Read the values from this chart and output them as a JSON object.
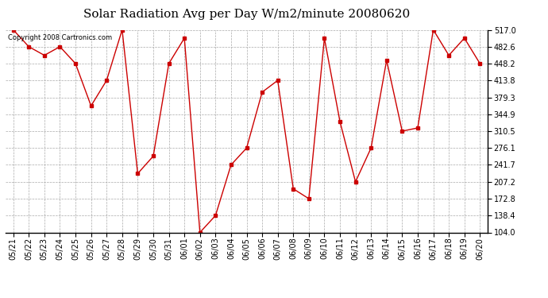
{
  "title": "Solar Radiation Avg per Day W/m2/minute 20080620",
  "copyright_text": "Copyright 2008 Cartronics.com",
  "dates": [
    "05/21",
    "05/22",
    "05/23",
    "05/24",
    "05/25",
    "05/26",
    "05/27",
    "05/28",
    "05/29",
    "05/30",
    "05/31",
    "06/01",
    "06/02",
    "06/03",
    "06/04",
    "06/05",
    "06/06",
    "06/07",
    "06/08",
    "06/09",
    "06/10",
    "06/11",
    "06/12",
    "06/13",
    "06/14",
    "06/15",
    "06/16",
    "06/17",
    "06/18",
    "06/19",
    "06/20"
  ],
  "values": [
    517.0,
    482.6,
    465.0,
    482.6,
    448.2,
    362.0,
    413.8,
    517.0,
    224.0,
    259.5,
    448.2,
    500.0,
    104.0,
    138.4,
    241.7,
    276.1,
    390.0,
    413.8,
    193.0,
    172.8,
    500.0,
    330.0,
    207.2,
    276.1,
    455.0,
    310.5,
    317.0,
    517.0,
    465.0,
    500.0,
    448.2
  ],
  "line_color": "#cc0000",
  "marker": "s",
  "marker_size": 3,
  "background_color": "#ffffff",
  "plot_bg_color": "#ffffff",
  "grid_color": "#aaaaaa",
  "ylim": [
    104.0,
    517.0
  ],
  "yticks": [
    104.0,
    138.4,
    172.8,
    207.2,
    241.7,
    276.1,
    310.5,
    344.9,
    379.3,
    413.8,
    448.2,
    482.6,
    517.0
  ],
  "title_fontsize": 11,
  "tick_fontsize": 7,
  "copyright_fontsize": 6,
  "fig_width": 6.9,
  "fig_height": 3.75,
  "dpi": 100
}
